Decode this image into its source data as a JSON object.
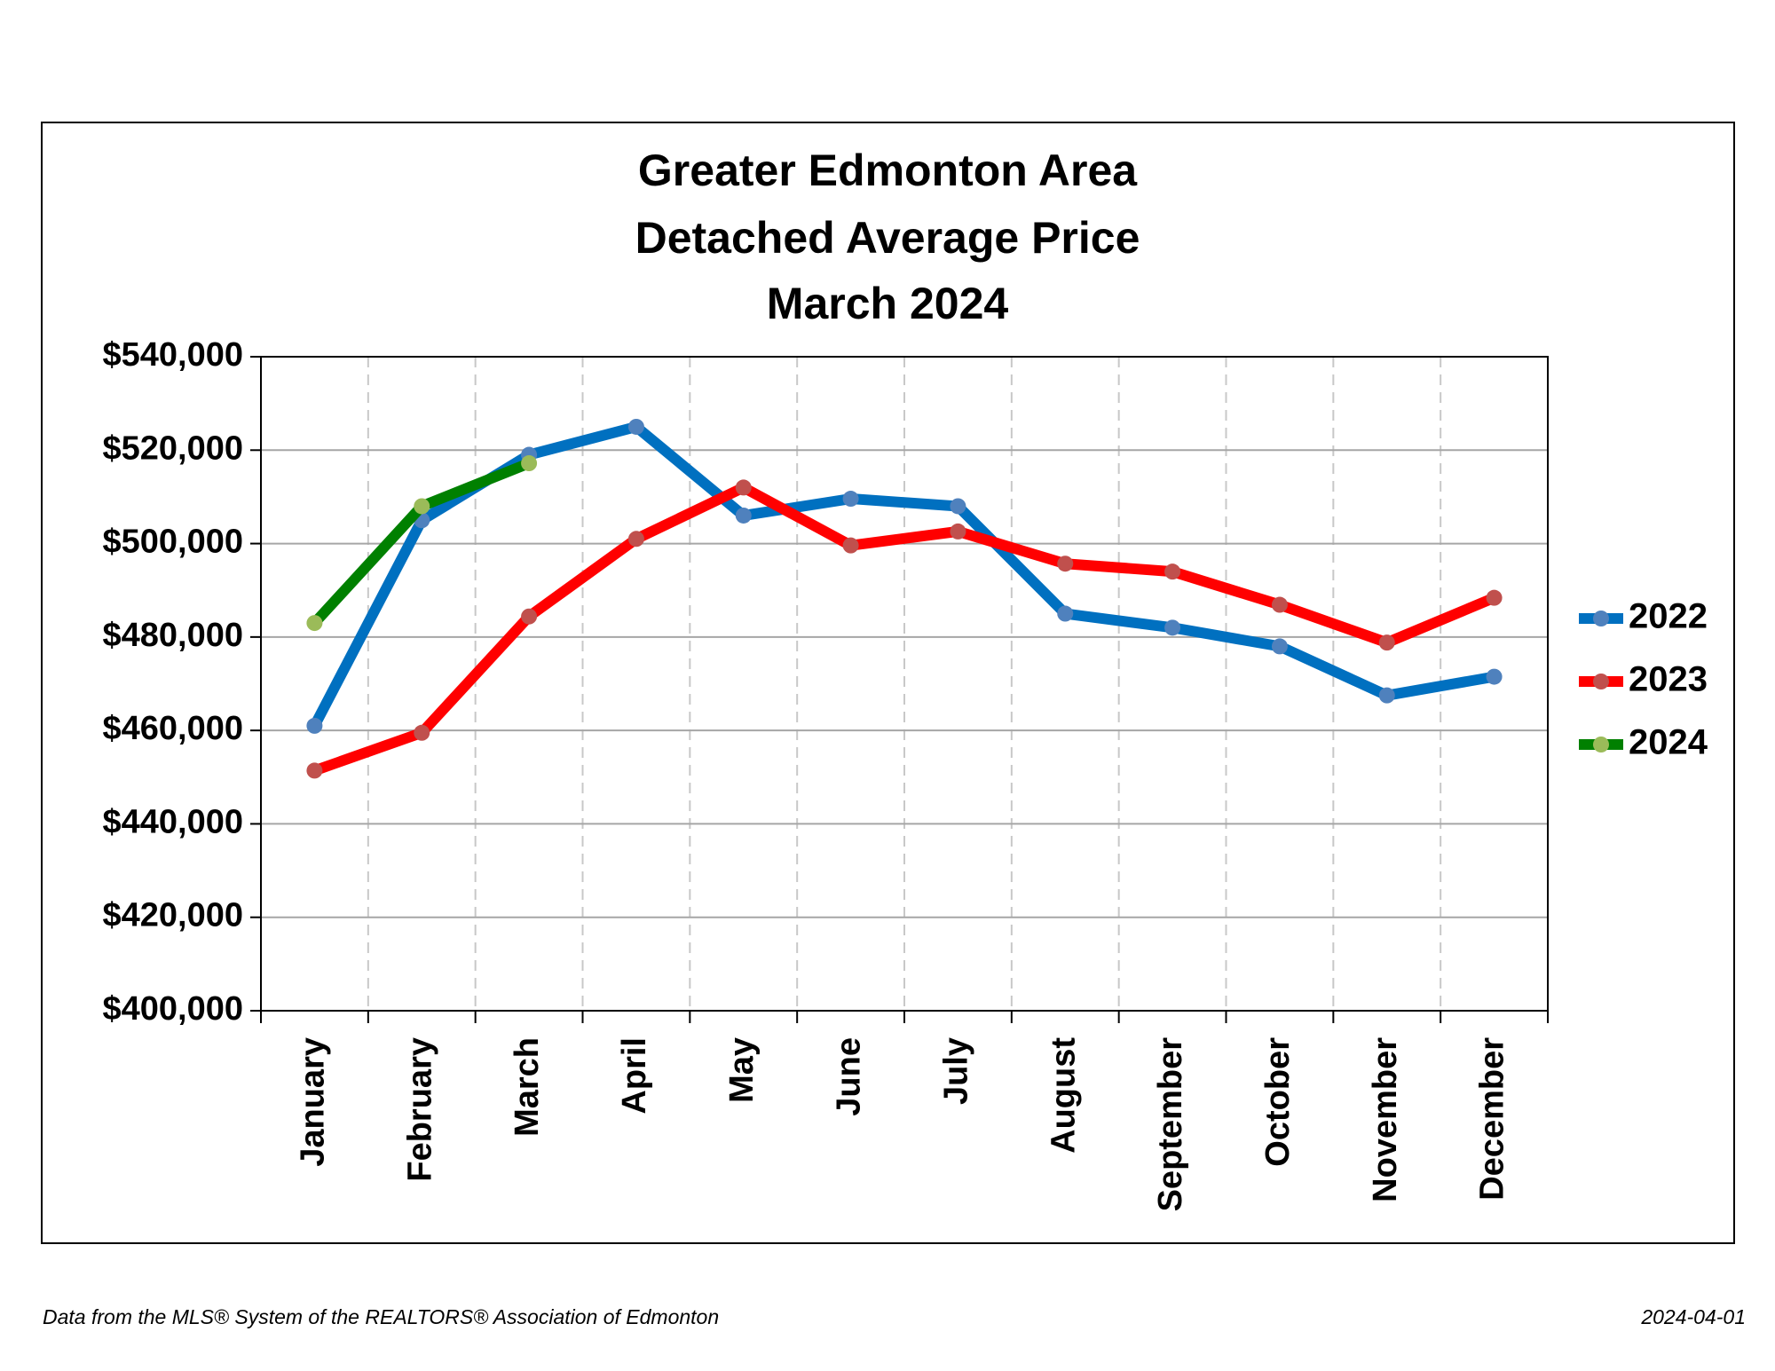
{
  "chart_data": {
    "type": "line",
    "title": [
      "Greater Edmonton Area",
      "Detached Average Price",
      "March 2024"
    ],
    "categories": [
      "January",
      "February",
      "March",
      "April",
      "May",
      "June",
      "July",
      "August",
      "September",
      "October",
      "November",
      "December"
    ],
    "series": [
      {
        "name": "2022",
        "color": "#0070c0",
        "marker_color": "#4f81bd",
        "values": [
          461000,
          505000,
          519000,
          525000,
          506000,
          509600,
          508000,
          485000,
          482000,
          478000,
          467500,
          471500
        ]
      },
      {
        "name": "2023",
        "color": "#ff0000",
        "marker_color": "#c0504d",
        "values": [
          451400,
          459500,
          484400,
          501000,
          512000,
          499600,
          502600,
          495700,
          494000,
          486900,
          478800,
          488400
        ]
      },
      {
        "name": "2024",
        "color": "#008000",
        "marker_color": "#9bbb59",
        "values": [
          483000,
          508000,
          517200,
          null,
          null,
          null,
          null,
          null,
          null,
          null,
          null,
          null
        ]
      }
    ],
    "ylim": [
      400000,
      540000
    ],
    "yticks": [
      {
        "value": 400000,
        "label": "$400,000"
      },
      {
        "value": 420000,
        "label": "$420,000"
      },
      {
        "value": 440000,
        "label": "$440,000"
      },
      {
        "value": 460000,
        "label": "$460,000"
      },
      {
        "value": 480000,
        "label": "$480,000"
      },
      {
        "value": 500000,
        "label": "$500,000"
      },
      {
        "value": 520000,
        "label": "$520,000"
      },
      {
        "value": 540000,
        "label": "$540,000"
      }
    ],
    "grid": true,
    "legend": "right"
  },
  "footer": {
    "source": "Data from the MLS® System of the REALTORS® Association of Edmonton",
    "date": "2024-04-01"
  }
}
